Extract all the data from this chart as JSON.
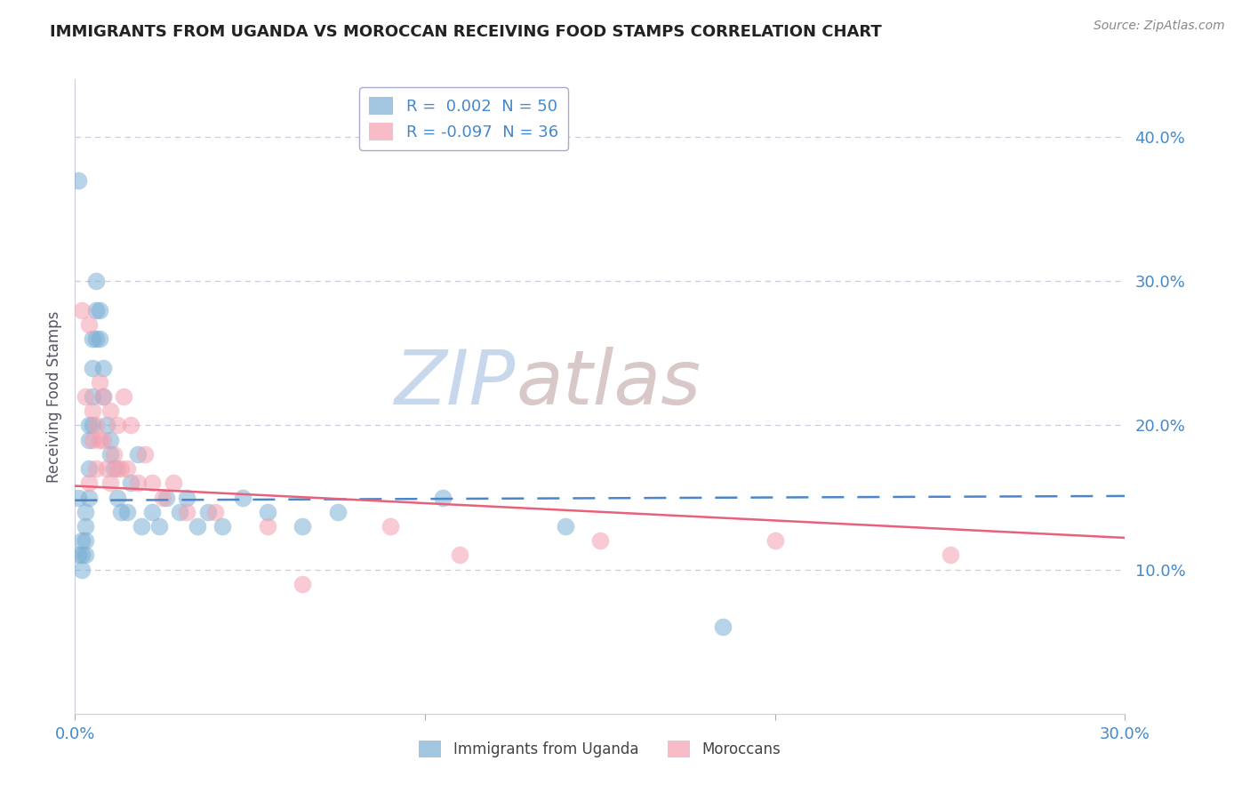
{
  "title": "IMMIGRANTS FROM UGANDA VS MOROCCAN RECEIVING FOOD STAMPS CORRELATION CHART",
  "source": "Source: ZipAtlas.com",
  "ylabel": "Receiving Food Stamps",
  "r_uganda": 0.002,
  "n_uganda": 50,
  "r_moroccan": -0.097,
  "n_moroccan": 36,
  "xlim": [
    0.0,
    0.3
  ],
  "ylim": [
    0.0,
    0.44
  ],
  "yticks": [
    0.1,
    0.2,
    0.3,
    0.4
  ],
  "ytick_labels": [
    "10.0%",
    "20.0%",
    "30.0%",
    "40.0%"
  ],
  "xticks": [
    0.0,
    0.1,
    0.2,
    0.3
  ],
  "xtick_labels": [
    "0.0%",
    "",
    "",
    "30.0%"
  ],
  "blue_color": "#7BAFD4",
  "pink_color": "#F4A0B0",
  "blue_line_color": "#4A86C8",
  "pink_line_color": "#E8607A",
  "bg_color": "#FFFFFF",
  "grid_color": "#CCCCDD",
  "title_color": "#222222",
  "watermark_zip_color": "#C8D8EC",
  "watermark_atlas_color": "#D8C8C8",
  "uganda_x": [
    0.001,
    0.001,
    0.001,
    0.002,
    0.002,
    0.002,
    0.003,
    0.003,
    0.003,
    0.003,
    0.004,
    0.004,
    0.004,
    0.004,
    0.005,
    0.005,
    0.005,
    0.005,
    0.006,
    0.006,
    0.006,
    0.007,
    0.007,
    0.008,
    0.008,
    0.009,
    0.01,
    0.01,
    0.011,
    0.012,
    0.013,
    0.015,
    0.016,
    0.018,
    0.019,
    0.022,
    0.024,
    0.026,
    0.03,
    0.032,
    0.035,
    0.038,
    0.042,
    0.048,
    0.055,
    0.065,
    0.075,
    0.105,
    0.14,
    0.185
  ],
  "uganda_y": [
    0.37,
    0.15,
    0.11,
    0.1,
    0.11,
    0.12,
    0.11,
    0.12,
    0.13,
    0.14,
    0.15,
    0.17,
    0.19,
    0.2,
    0.2,
    0.22,
    0.24,
    0.26,
    0.26,
    0.28,
    0.3,
    0.28,
    0.26,
    0.24,
    0.22,
    0.2,
    0.18,
    0.19,
    0.17,
    0.15,
    0.14,
    0.14,
    0.16,
    0.18,
    0.13,
    0.14,
    0.13,
    0.15,
    0.14,
    0.15,
    0.13,
    0.14,
    0.13,
    0.15,
    0.14,
    0.13,
    0.14,
    0.15,
    0.13,
    0.06
  ],
  "moroccan_x": [
    0.002,
    0.003,
    0.004,
    0.004,
    0.005,
    0.005,
    0.006,
    0.006,
    0.007,
    0.007,
    0.008,
    0.008,
    0.009,
    0.01,
    0.01,
    0.011,
    0.012,
    0.012,
    0.013,
    0.014,
    0.015,
    0.016,
    0.018,
    0.02,
    0.022,
    0.025,
    0.028,
    0.032,
    0.04,
    0.055,
    0.065,
    0.09,
    0.11,
    0.15,
    0.2,
    0.25
  ],
  "moroccan_y": [
    0.28,
    0.22,
    0.27,
    0.16,
    0.21,
    0.19,
    0.17,
    0.2,
    0.23,
    0.19,
    0.22,
    0.19,
    0.17,
    0.21,
    0.16,
    0.18,
    0.2,
    0.17,
    0.17,
    0.22,
    0.17,
    0.2,
    0.16,
    0.18,
    0.16,
    0.15,
    0.16,
    0.14,
    0.14,
    0.13,
    0.09,
    0.13,
    0.11,
    0.12,
    0.12,
    0.11
  ]
}
